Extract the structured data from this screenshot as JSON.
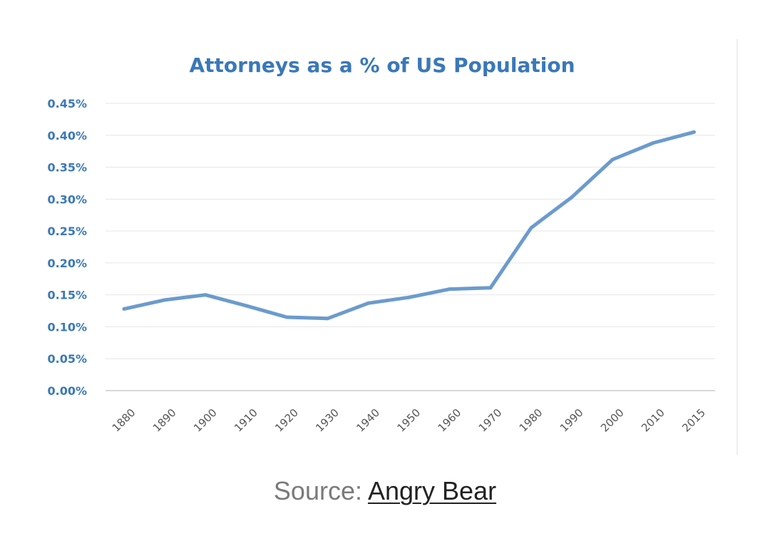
{
  "chart_data": {
    "type": "line",
    "title": "Attorneys as a % of US Population",
    "xlabel": "",
    "ylabel": "",
    "categories": [
      "1880",
      "1890",
      "1900",
      "1910",
      "1920",
      "1930",
      "1940",
      "1950",
      "1960",
      "1970",
      "1980",
      "1990",
      "2000",
      "2010",
      "2015"
    ],
    "series": [
      {
        "name": "Attorneys as a % of US Population",
        "values": [
          0.128,
          0.142,
          0.15,
          0.133,
          0.115,
          0.113,
          0.137,
          0.146,
          0.159,
          0.161,
          0.255,
          0.303,
          0.362,
          0.388,
          0.405
        ]
      }
    ],
    "ylim": [
      0,
      0.45
    ],
    "y_ticks": [
      "0.00%",
      "0.05%",
      "0.10%",
      "0.15%",
      "0.20%",
      "0.25%",
      "0.30%",
      "0.35%",
      "0.40%",
      "0.45%"
    ],
    "grid": true,
    "legend": "none"
  },
  "colors": {
    "line": "#6b9bcd",
    "title": "#3a78b8",
    "y_tick": "#3a78b8",
    "x_tick": "#555555",
    "grid": "#e6e6e6",
    "axis": "#cccccc"
  },
  "source": {
    "prefix": "Source: ",
    "link_text": "Angry Bear"
  }
}
